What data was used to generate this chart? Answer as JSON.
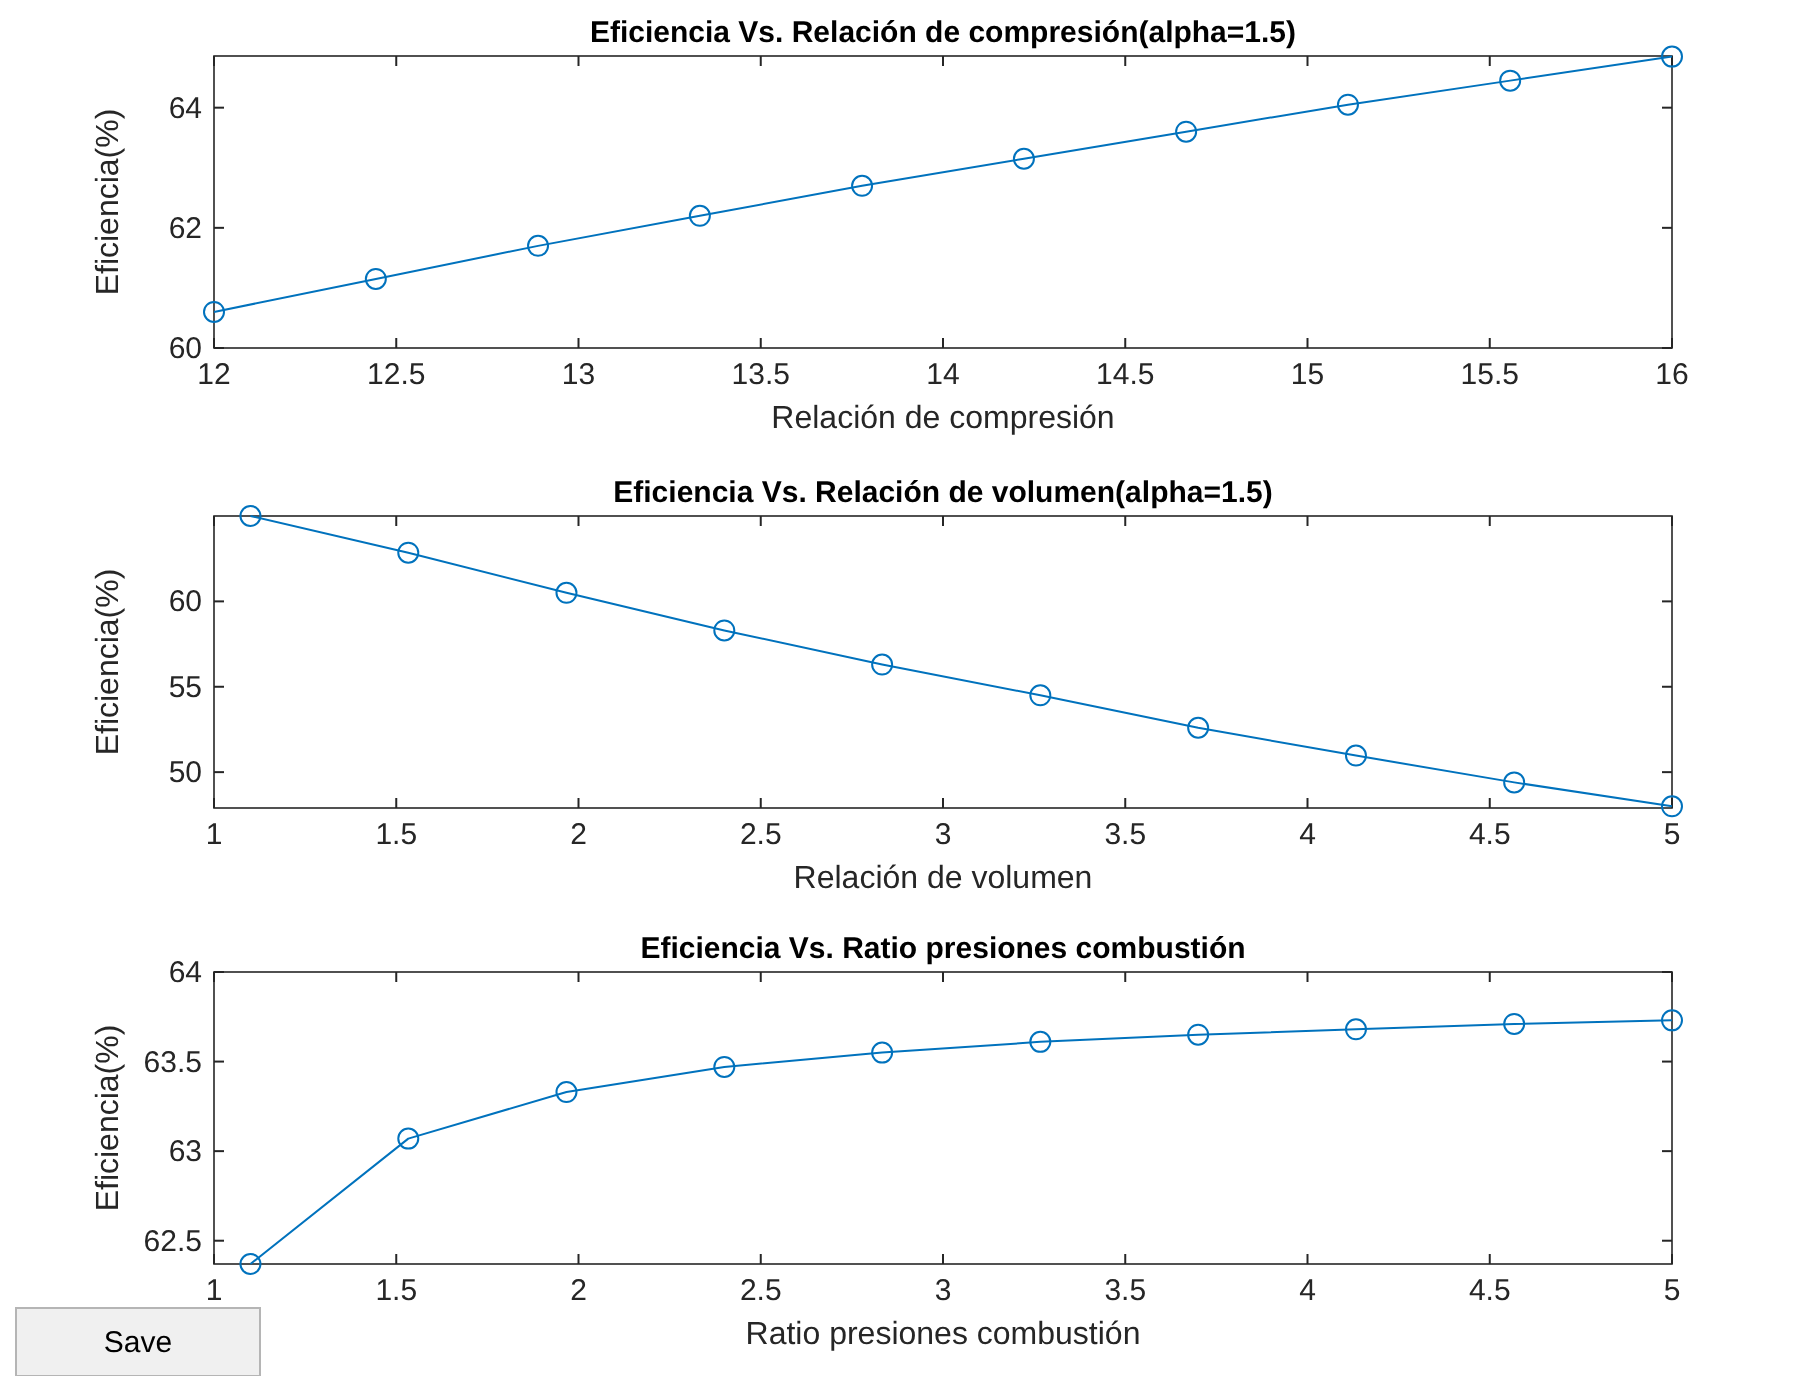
{
  "chart_data": [
    {
      "type": "line",
      "title": "Eficiencia Vs. Relación de compresión(alpha=1.5)",
      "xlabel": "Relación de compresión",
      "ylabel": "Eficiencia(%)",
      "x": [
        12,
        12.444,
        12.889,
        13.333,
        13.778,
        14.222,
        14.667,
        15.111,
        15.556,
        16
      ],
      "series": [
        {
          "color": "#0072bd",
          "values": [
            60.6,
            61.15,
            61.7,
            62.2,
            62.7,
            63.15,
            63.6,
            64.05,
            64.45,
            64.85
          ]
        }
      ],
      "xlim": [
        12,
        16
      ],
      "xticks": [
        12,
        12.5,
        13,
        13.5,
        14,
        14.5,
        15,
        15.5,
        16
      ],
      "ylim": [
        60,
        64.86
      ],
      "yticks": [
        60,
        62,
        64
      ],
      "marker": "circle",
      "grid": false
    },
    {
      "type": "line",
      "title": "Eficiencia Vs. Relación de volumen(alpha=1.5)",
      "xlabel": "Relación de volumen",
      "ylabel": "Eficiencia(%)",
      "x": [
        1.1,
        1.533,
        1.967,
        2.4,
        2.833,
        3.267,
        3.7,
        4.133,
        4.567,
        5
      ],
      "series": [
        {
          "color": "#0072bd",
          "values": [
            65,
            62.85,
            60.5,
            58.3,
            56.3,
            54.5,
            52.6,
            50.97,
            49.4,
            48
          ]
        }
      ],
      "xlim": [
        1,
        5
      ],
      "xticks": [
        1,
        1.5,
        2,
        2.5,
        3,
        3.5,
        4,
        4.5,
        5
      ],
      "ylim": [
        47.9,
        65
      ],
      "yticks": [
        50,
        55,
        60
      ],
      "marker": "circle",
      "grid": false
    },
    {
      "type": "line",
      "title": "Eficiencia Vs. Ratio presiones combustión",
      "xlabel": "Ratio presiones combustión",
      "ylabel": "Eficiencia(%)",
      "x": [
        1.1,
        1.533,
        1.967,
        2.4,
        2.833,
        3.267,
        3.7,
        4.133,
        4.567,
        5
      ],
      "series": [
        {
          "color": "#0072bd",
          "values": [
            62.37,
            63.07,
            63.33,
            63.47,
            63.55,
            63.61,
            63.65,
            63.68,
            63.71,
            63.73
          ]
        }
      ],
      "xlim": [
        1,
        5
      ],
      "xticks": [
        1,
        1.5,
        2,
        2.5,
        3,
        3.5,
        4,
        4.5,
        5
      ],
      "ylim": [
        62.37,
        64
      ],
      "yticks": [
        62.5,
        63,
        63.5,
        64
      ],
      "marker": "circle",
      "grid": false
    },
    {
      "type": "other",
      "annotations": [
        "Save"
      ]
    }
  ]
}
